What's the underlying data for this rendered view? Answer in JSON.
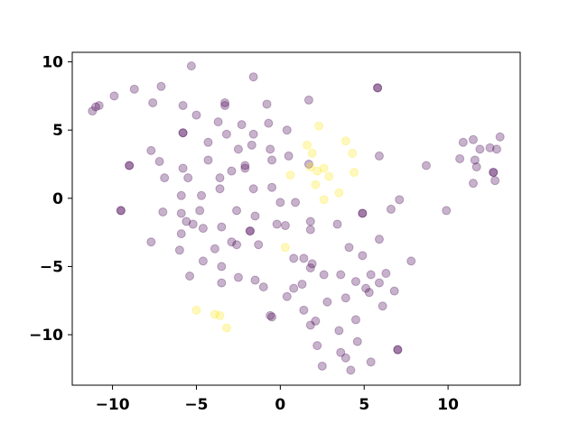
{
  "chart_data": {
    "type": "scatter",
    "title": "",
    "xlabel": "",
    "ylabel": "",
    "xlim": [
      -12.4,
      14.3
    ],
    "ylim": [
      -13.7,
      10.7
    ],
    "grid": false,
    "xticks": [
      -10,
      -5,
      0,
      5,
      10
    ],
    "yticks": [
      -10,
      -5,
      0,
      5,
      10
    ],
    "xtick_labels": [
      "−10",
      "−5",
      "0",
      "5",
      "10"
    ],
    "ytick_labels": [
      "−10",
      "−5",
      "0",
      "5",
      "10"
    ],
    "marker_alpha": 0.3,
    "series": [
      {
        "color": "#440154",
        "points": [
          [
            -5.3,
            9.7
          ],
          [
            -1.6,
            8.9
          ],
          [
            -8.7,
            8.0
          ],
          [
            -7.1,
            8.2
          ],
          [
            -9.9,
            7.5
          ],
          [
            -10.8,
            6.8
          ],
          [
            -11.0,
            6.7
          ],
          [
            -11.2,
            6.4
          ],
          [
            -7.6,
            7.0
          ],
          [
            -3.3,
            7.0
          ],
          [
            -3.3,
            6.8
          ],
          [
            -0.8,
            6.9
          ],
          [
            1.7,
            7.2
          ],
          [
            5.8,
            8.1
          ],
          [
            5.8,
            8.1
          ],
          [
            -5.8,
            6.8
          ],
          [
            -3.7,
            5.6
          ],
          [
            -5.0,
            6.1
          ],
          [
            -2.3,
            5.4
          ],
          [
            -4.3,
            4.1
          ],
          [
            -5.8,
            4.8
          ],
          [
            -5.8,
            4.8
          ],
          [
            -3.2,
            4.7
          ],
          [
            -1.6,
            4.7
          ],
          [
            -0.7,
            5.5
          ],
          [
            0.4,
            5.0
          ],
          [
            -1.7,
            3.9
          ],
          [
            -0.6,
            3.6
          ],
          [
            -2.5,
            3.6
          ],
          [
            -2.1,
            2.4
          ],
          [
            -2.1,
            2.2
          ],
          [
            -2.9,
            2.0
          ],
          [
            -4.3,
            2.8
          ],
          [
            -5.8,
            2.2
          ],
          [
            -7.2,
            2.7
          ],
          [
            -7.7,
            3.5
          ],
          [
            -9.0,
            2.4
          ],
          [
            -9.0,
            2.4
          ],
          [
            -6.9,
            1.5
          ],
          [
            -5.5,
            1.5
          ],
          [
            -3.6,
            1.5
          ],
          [
            -3.6,
            0.7
          ],
          [
            -4.7,
            0.2
          ],
          [
            -5.9,
            0.2
          ],
          [
            -7.0,
            -1.0
          ],
          [
            -5.9,
            -1.1
          ],
          [
            -4.8,
            -0.9
          ],
          [
            -2.6,
            -0.9
          ],
          [
            -1.5,
            -1.3
          ],
          [
            -1.6,
            0.7
          ],
          [
            -0.5,
            0.8
          ],
          [
            0.0,
            -0.3
          ],
          [
            0.9,
            -0.3
          ],
          [
            1.7,
            2.5
          ],
          [
            0.5,
            3.1
          ],
          [
            -0.5,
            2.8
          ],
          [
            5.9,
            3.1
          ],
          [
            -9.5,
            -0.9
          ],
          [
            -9.5,
            -0.9
          ],
          [
            -5.6,
            -1.7
          ],
          [
            -5.2,
            -1.9
          ],
          [
            -4.6,
            -2.2
          ],
          [
            -5.9,
            -2.6
          ],
          [
            -3.9,
            -3.7
          ],
          [
            -2.6,
            -3.4
          ],
          [
            -2.9,
            -3.2
          ],
          [
            -3.5,
            -2.1
          ],
          [
            -1.8,
            -2.4
          ],
          [
            -1.8,
            -2.4
          ],
          [
            -0.2,
            -1.9
          ],
          [
            -1.3,
            -3.4
          ],
          [
            0.3,
            -2.0
          ],
          [
            1.8,
            -1.7
          ],
          [
            1.8,
            -2.3
          ],
          [
            3.4,
            -1.9
          ],
          [
            4.1,
            -3.6
          ],
          [
            4.9,
            -4.2
          ],
          [
            4.9,
            -1.1
          ],
          [
            4.9,
            -1.1
          ],
          [
            6.6,
            -0.8
          ],
          [
            7.1,
            -0.1
          ],
          [
            7.8,
            -4.6
          ],
          [
            9.9,
            -0.9
          ],
          [
            8.7,
            2.4
          ],
          [
            10.9,
            4.1
          ],
          [
            11.5,
            4.3
          ],
          [
            12.5,
            3.7
          ],
          [
            13.1,
            4.5
          ],
          [
            12.9,
            3.6
          ],
          [
            11.9,
            3.6
          ],
          [
            10.7,
            2.9
          ],
          [
            11.6,
            2.8
          ],
          [
            11.7,
            2.3
          ],
          [
            12.7,
            1.9
          ],
          [
            12.7,
            1.9
          ],
          [
            12.8,
            1.3
          ],
          [
            11.5,
            1.1
          ],
          [
            -5.4,
            -5.7
          ],
          [
            -4.6,
            -4.6
          ],
          [
            -3.5,
            -5.0
          ],
          [
            -3.5,
            -6.2
          ],
          [
            -2.5,
            -5.8
          ],
          [
            -1.5,
            -6.0
          ],
          [
            -1.0,
            -6.5
          ],
          [
            0.8,
            -4.4
          ],
          [
            1.4,
            -4.4
          ],
          [
            1.9,
            -4.8
          ],
          [
            1.8,
            -5.1
          ],
          [
            1.3,
            -6.3
          ],
          [
            0.8,
            -6.6
          ],
          [
            0.4,
            -7.2
          ],
          [
            1.4,
            -8.2
          ],
          [
            1.8,
            -9.3
          ],
          [
            2.6,
            -5.6
          ],
          [
            2.8,
            -7.6
          ],
          [
            3.6,
            -5.6
          ],
          [
            3.9,
            -7.3
          ],
          [
            4.5,
            -6.1
          ],
          [
            5.1,
            -6.6
          ],
          [
            4.5,
            -8.9
          ],
          [
            5.4,
            -5.6
          ],
          [
            5.9,
            -6.2
          ],
          [
            5.3,
            -6.9
          ],
          [
            6.1,
            -7.9
          ],
          [
            6.8,
            -6.8
          ],
          [
            6.3,
            -5.5
          ],
          [
            5.9,
            -3.0
          ],
          [
            -0.6,
            -8.6
          ],
          [
            -0.5,
            -8.7
          ],
          [
            2.2,
            -10.8
          ],
          [
            2.5,
            -12.3
          ],
          [
            3.6,
            -11.3
          ],
          [
            3.9,
            -11.7
          ],
          [
            4.2,
            -12.6
          ],
          [
            4.6,
            -10.5
          ],
          [
            5.4,
            -12.0
          ],
          [
            7.0,
            -11.1
          ],
          [
            7.0,
            -11.1
          ],
          [
            3.5,
            -9.7
          ],
          [
            2.1,
            -9.0
          ],
          [
            -7.7,
            -3.2
          ],
          [
            -6.0,
            -3.8
          ]
        ]
      },
      {
        "color": "#fde725",
        "points": [
          [
            2.3,
            5.3
          ],
          [
            1.6,
            3.9
          ],
          [
            3.9,
            4.2
          ],
          [
            1.9,
            3.3
          ],
          [
            4.3,
            3.3
          ],
          [
            1.8,
            2.3
          ],
          [
            2.2,
            2.0
          ],
          [
            2.6,
            2.2
          ],
          [
            2.9,
            1.6
          ],
          [
            4.4,
            1.9
          ],
          [
            2.1,
            1.0
          ],
          [
            3.5,
            0.4
          ],
          [
            2.6,
            -0.1
          ],
          [
            0.6,
            1.7
          ],
          [
            0.3,
            -3.6
          ],
          [
            -5.0,
            -8.2
          ],
          [
            -3.9,
            -8.5
          ],
          [
            -3.6,
            -8.6
          ],
          [
            -3.2,
            -9.5
          ]
        ]
      }
    ]
  }
}
